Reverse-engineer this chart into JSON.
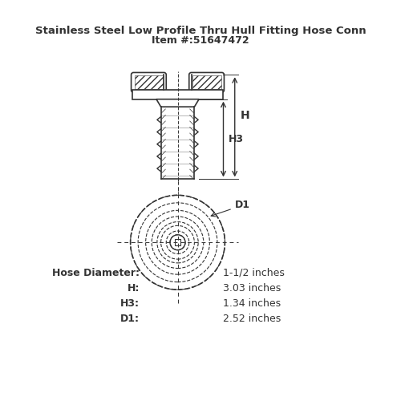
{
  "title": "Stainless Steel Low Profile Thru Hull Fitting Hose Conn",
  "item": "Item #:51647472",
  "specs": [
    {
      "label": "Hose Diameter:",
      "value": "1-1/2 inches"
    },
    {
      "label": "H:",
      "value": "3.03 inches"
    },
    {
      "label": "H3:",
      "value": "1.34 inches"
    },
    {
      "label": "D1:",
      "value": "2.52 inches"
    }
  ],
  "line_color": "#333333",
  "bg_color": "#ffffff",
  "hatch_color": "#555555",
  "dashed_color": "#555555"
}
